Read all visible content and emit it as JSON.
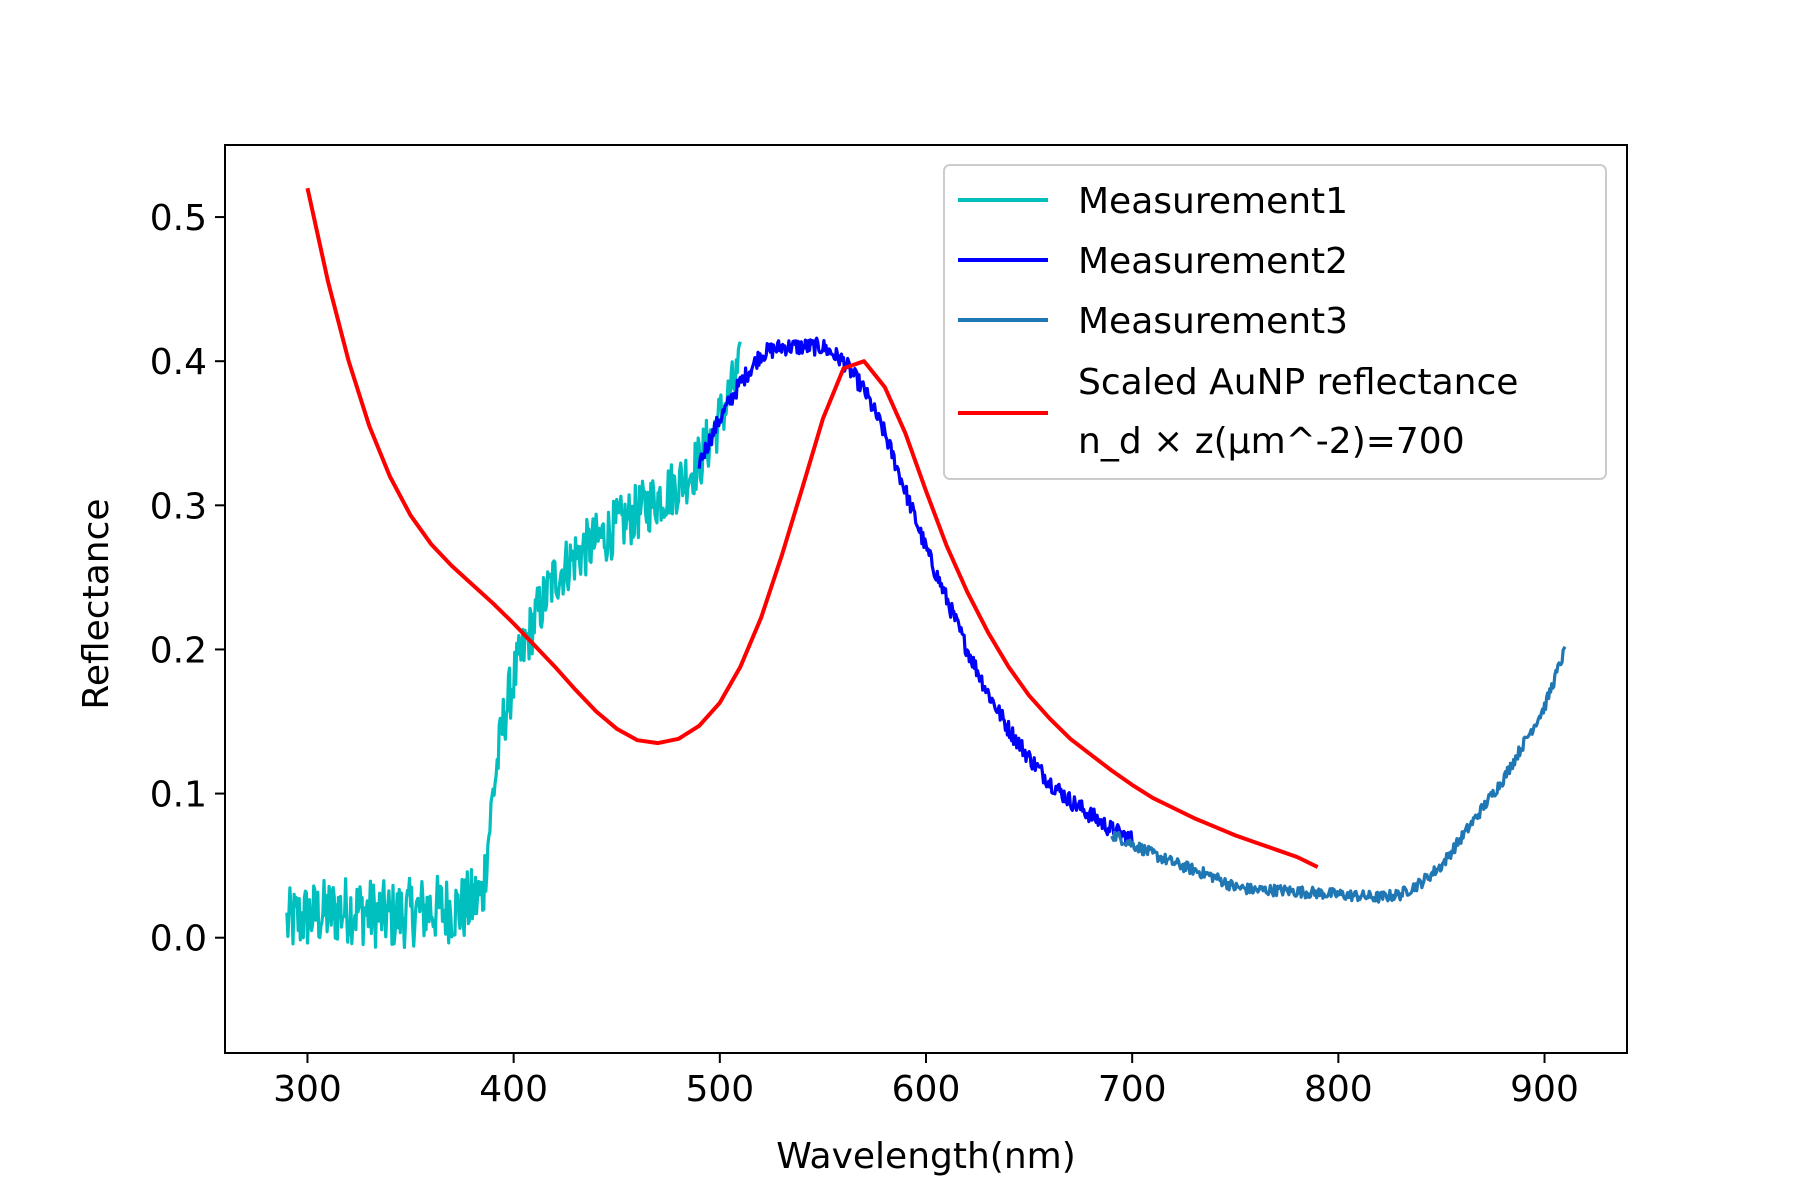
{
  "chart_data": {
    "type": "line",
    "xlabel": "Wavelength(nm)",
    "ylabel": "Reflectance",
    "xlim": [
      260,
      940
    ],
    "ylim": [
      -0.08,
      0.55
    ],
    "xticks": [
      300,
      400,
      500,
      600,
      700,
      800,
      900
    ],
    "xtick_labels": [
      "300",
      "400",
      "500",
      "600",
      "700",
      "800",
      "900"
    ],
    "yticks": [
      0.0,
      0.1,
      0.2,
      0.3,
      0.4,
      0.5
    ],
    "ytick_labels": [
      "0.0",
      "0.1",
      "0.2",
      "0.3",
      "0.4",
      "0.5"
    ],
    "grid": false,
    "legend_position": "top-right",
    "series": [
      {
        "name": "Measurement1",
        "color": "#00BFBF",
        "noise": 0.02,
        "x": [
          290,
          300,
          320,
          340,
          360,
          375,
          385,
          390,
          395,
          400,
          405,
          410,
          420,
          430,
          440,
          450,
          460,
          470,
          480,
          490,
          500,
          510
        ],
        "y": [
          0.01,
          0.015,
          0.02,
          0.015,
          0.02,
          0.02,
          0.03,
          0.1,
          0.15,
          0.18,
          0.2,
          0.22,
          0.25,
          0.265,
          0.275,
          0.285,
          0.295,
          0.305,
          0.315,
          0.33,
          0.36,
          0.395
        ]
      },
      {
        "name": "Measurement2",
        "color": "#0000FF",
        "noise": 0.006,
        "x": [
          490,
          500,
          510,
          520,
          530,
          540,
          550,
          560,
          570,
          580,
          590,
          600,
          610,
          620,
          630,
          640,
          650,
          660,
          670,
          680,
          690,
          700
        ],
        "y": [
          0.33,
          0.36,
          0.385,
          0.405,
          0.41,
          0.41,
          0.41,
          0.4,
          0.38,
          0.35,
          0.31,
          0.27,
          0.235,
          0.2,
          0.17,
          0.145,
          0.125,
          0.108,
          0.095,
          0.085,
          0.075,
          0.068
        ]
      },
      {
        "name": "Measurement3",
        "color": "#1F77B4",
        "noise": 0.004,
        "x": [
          690,
          700,
          710,
          720,
          730,
          740,
          750,
          760,
          770,
          780,
          790,
          800,
          810,
          820,
          830,
          840,
          850,
          860,
          870,
          880,
          890,
          900,
          910
        ],
        "y": [
          0.072,
          0.065,
          0.058,
          0.052,
          0.047,
          0.042,
          0.035,
          0.033,
          0.033,
          0.032,
          0.031,
          0.03,
          0.029,
          0.028,
          0.03,
          0.038,
          0.05,
          0.07,
          0.09,
          0.11,
          0.135,
          0.16,
          0.2
        ]
      },
      {
        "name": "Scaled AuNP reflectance",
        "name_line2": "n_d × z(μm^-2)=700",
        "color": "#FF0000",
        "noise": 0,
        "x": [
          300,
          310,
          320,
          330,
          340,
          350,
          360,
          370,
          380,
          390,
          400,
          410,
          420,
          430,
          440,
          450,
          460,
          470,
          480,
          490,
          500,
          510,
          520,
          530,
          540,
          550,
          560,
          570,
          580,
          590,
          600,
          610,
          620,
          630,
          640,
          650,
          660,
          670,
          680,
          690,
          700,
          710,
          720,
          730,
          740,
          750,
          760,
          770,
          780,
          790
        ],
        "y": [
          0.52,
          0.455,
          0.4,
          0.355,
          0.32,
          0.293,
          0.273,
          0.258,
          0.245,
          0.232,
          0.218,
          0.203,
          0.188,
          0.172,
          0.157,
          0.145,
          0.137,
          0.135,
          0.138,
          0.147,
          0.163,
          0.188,
          0.222,
          0.265,
          0.312,
          0.36,
          0.395,
          0.4,
          0.382,
          0.35,
          0.31,
          0.272,
          0.24,
          0.212,
          0.188,
          0.168,
          0.152,
          0.138,
          0.127,
          0.116,
          0.106,
          0.097,
          0.09,
          0.083,
          0.077,
          0.071,
          0.066,
          0.061,
          0.056,
          0.049
        ]
      }
    ]
  }
}
